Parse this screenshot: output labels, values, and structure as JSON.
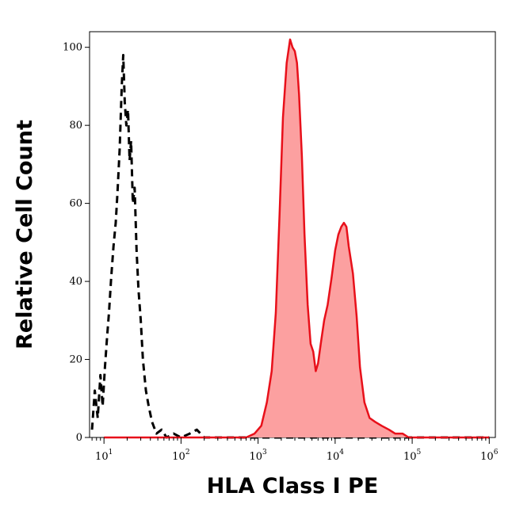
{
  "chart_data": {
    "type": "area",
    "xlabel": "HLA Class I PE",
    "ylabel": "Relative Cell Count",
    "x_scale": "log",
    "xlim": [
      6.5,
      1200000
    ],
    "ylim": [
      0,
      104
    ],
    "grid": false,
    "x_ticks": [
      {
        "value": 10,
        "base": "10",
        "exp": "1"
      },
      {
        "value": 100,
        "base": "10",
        "exp": "2"
      },
      {
        "value": 1000,
        "base": "10",
        "exp": "3"
      },
      {
        "value": 10000,
        "base": "10",
        "exp": "4"
      },
      {
        "value": 100000,
        "base": "10",
        "exp": "5"
      },
      {
        "value": 1000000,
        "base": "10",
        "exp": "6"
      }
    ],
    "y_ticks": [
      0,
      20,
      40,
      60,
      80,
      100
    ],
    "series": [
      {
        "style": "dashed",
        "color": "#000000",
        "fill": "none",
        "points": [
          [
            7,
            2
          ],
          [
            7.6,
            12
          ],
          [
            8.3,
            5
          ],
          [
            9,
            16
          ],
          [
            9.6,
            8
          ],
          [
            10.3,
            18
          ],
          [
            11,
            26
          ],
          [
            11.6,
            32
          ],
          [
            12.4,
            41
          ],
          [
            13.3,
            49
          ],
          [
            14.2,
            55
          ],
          [
            15,
            63
          ],
          [
            16,
            74
          ],
          [
            17,
            90
          ],
          [
            17.8,
            98
          ],
          [
            18.6,
            86
          ],
          [
            19.5,
            80
          ],
          [
            20.5,
            84
          ],
          [
            21.5,
            71
          ],
          [
            22.5,
            76
          ],
          [
            23.7,
            60
          ],
          [
            25,
            64
          ],
          [
            26.5,
            48
          ],
          [
            28,
            38
          ],
          [
            30,
            30
          ],
          [
            32,
            20
          ],
          [
            35,
            12
          ],
          [
            38,
            8
          ],
          [
            42,
            4
          ],
          [
            48,
            1
          ],
          [
            56,
            2
          ],
          [
            65,
            0
          ],
          [
            80,
            1
          ],
          [
            100,
            0
          ],
          [
            130,
            1
          ],
          [
            160,
            2
          ],
          [
            200,
            0
          ],
          [
            500,
            0
          ],
          [
            1000,
            0
          ],
          [
            10000,
            0
          ],
          [
            100000,
            0
          ],
          [
            1000000,
            0
          ]
        ]
      },
      {
        "style": "solid",
        "color": "#e8101a",
        "fill": "#fca0a0",
        "points": [
          [
            10,
            0
          ],
          [
            100,
            0
          ],
          [
            300,
            0
          ],
          [
            700,
            0
          ],
          [
            900,
            1
          ],
          [
            1100,
            3
          ],
          [
            1300,
            9
          ],
          [
            1500,
            17
          ],
          [
            1700,
            32
          ],
          [
            1900,
            57
          ],
          [
            2100,
            82
          ],
          [
            2350,
            96
          ],
          [
            2600,
            102
          ],
          [
            2800,
            100
          ],
          [
            3000,
            99
          ],
          [
            3200,
            96
          ],
          [
            3400,
            88
          ],
          [
            3700,
            72
          ],
          [
            4000,
            52
          ],
          [
            4400,
            34
          ],
          [
            4800,
            24
          ],
          [
            5200,
            22
          ],
          [
            5600,
            17
          ],
          [
            6000,
            19
          ],
          [
            6500,
            24
          ],
          [
            7200,
            30
          ],
          [
            8000,
            34
          ],
          [
            9000,
            41
          ],
          [
            10000,
            48
          ],
          [
            11000,
            52
          ],
          [
            12000,
            54
          ],
          [
            13000,
            55
          ],
          [
            14000,
            54
          ],
          [
            15000,
            49
          ],
          [
            17000,
            42
          ],
          [
            19000,
            31
          ],
          [
            21000,
            18
          ],
          [
            24000,
            9
          ],
          [
            28000,
            5
          ],
          [
            33000,
            4
          ],
          [
            40000,
            3
          ],
          [
            50000,
            2
          ],
          [
            60000,
            1
          ],
          [
            75000,
            1
          ],
          [
            90000,
            0
          ],
          [
            200000,
            0
          ],
          [
            1000000,
            0
          ]
        ]
      }
    ]
  }
}
